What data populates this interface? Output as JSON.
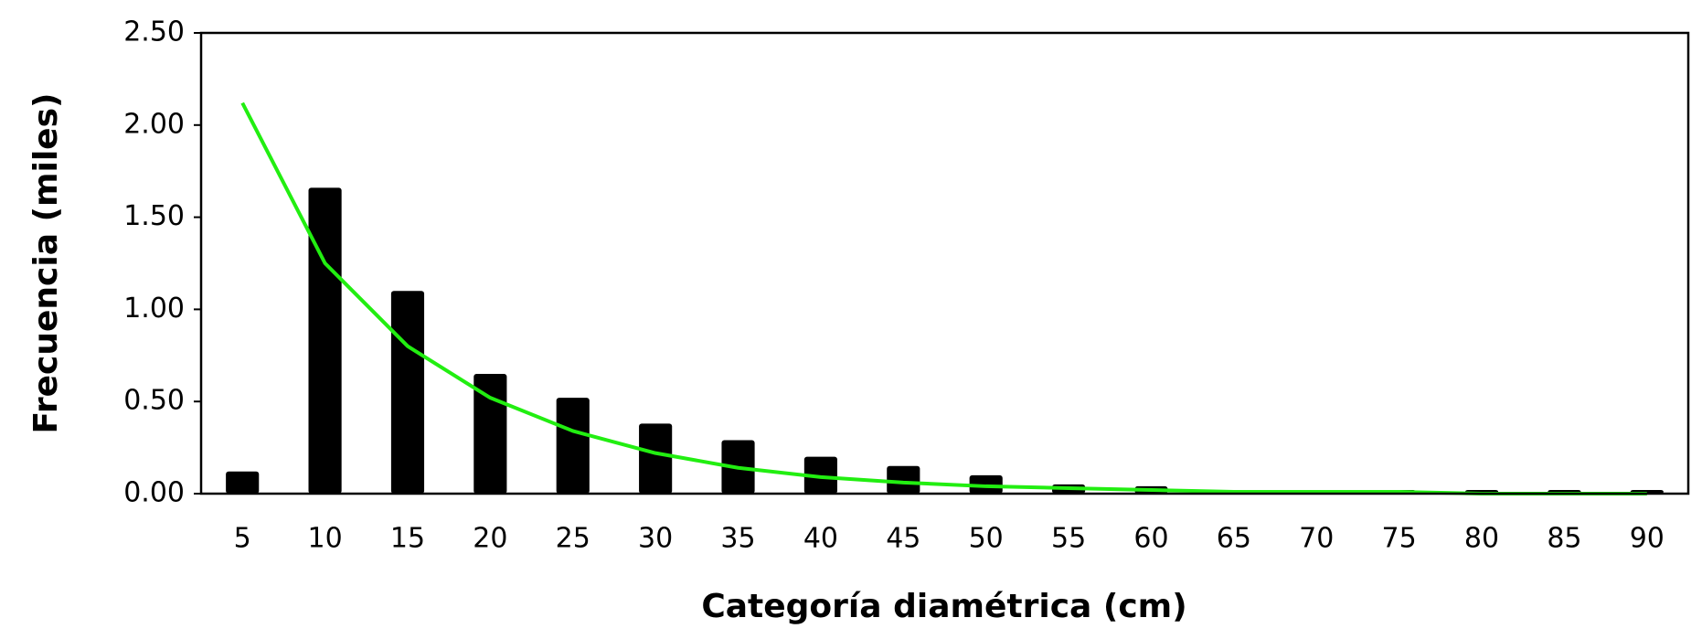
{
  "chart_data": {
    "type": "bar",
    "x_label": "Categoría diamétrica (cm)",
    "y_label": "Frecuencia (miles)",
    "categories": [
      "5",
      "10",
      "15",
      "20",
      "25",
      "30",
      "35",
      "40",
      "45",
      "50",
      "55",
      "60",
      "65",
      "70",
      "75",
      "80",
      "85",
      "90"
    ],
    "series": [
      {
        "type": "bar",
        "color": "#000000",
        "values": [
          0.12,
          1.66,
          1.1,
          0.65,
          0.52,
          0.38,
          0.29,
          0.2,
          0.15,
          0.1,
          0.05,
          0.04,
          0.0,
          0.02,
          0.02,
          0.02,
          0.02,
          0.02
        ]
      },
      {
        "type": "line",
        "color": "#22ee11",
        "values": [
          2.12,
          1.25,
          0.8,
          0.52,
          0.34,
          0.22,
          0.14,
          0.09,
          0.06,
          0.04,
          0.03,
          0.02,
          0.01,
          0.01,
          0.01,
          0,
          0,
          0
        ]
      }
    ],
    "ylim": [
      0,
      2.5
    ],
    "yticks": [
      {
        "value": 0,
        "label": "0.00"
      },
      {
        "value": 0.5,
        "label": "0.50"
      },
      {
        "value": 1,
        "label": "1.00"
      },
      {
        "value": 1.5,
        "label": "1.50"
      },
      {
        "value": 2,
        "label": "2.00"
      },
      {
        "value": 2.5,
        "label": "2.50"
      }
    ],
    "grid": false
  }
}
